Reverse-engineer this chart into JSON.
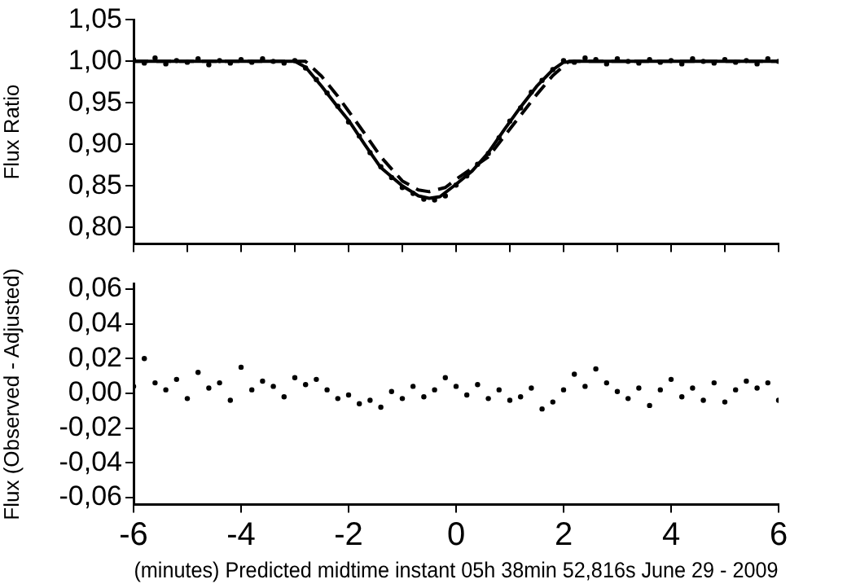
{
  "chart_data": [
    {
      "type": "scatter",
      "ylabel": "Flux Ratio",
      "xlim": [
        -6,
        6
      ],
      "xticks": [
        -6,
        -5,
        -4,
        -3,
        -2,
        -1,
        0,
        1,
        2,
        3,
        4,
        5,
        6
      ],
      "ylim": [
        0.78,
        1.05
      ],
      "yticks": [
        {
          "value": 0.8,
          "label": "0,80"
        },
        {
          "value": 0.85,
          "label": "0,85"
        },
        {
          "value": 0.9,
          "label": "0,90"
        },
        {
          "value": 0.95,
          "label": "0,95"
        },
        {
          "value": 1.0,
          "label": "1,00"
        },
        {
          "value": 1.05,
          "label": "1,05"
        }
      ],
      "tick_labels": "y",
      "grid": false,
      "legend": false,
      "series": [
        {
          "marker": "circle",
          "color": "#000000",
          "x": [
            -6,
            -5.8,
            -5.6,
            -5.4,
            -5.2,
            -5,
            -4.8,
            -4.6,
            -4.4,
            -4.2,
            -4,
            -3.8,
            -3.6,
            -3.4,
            -3.2,
            -3,
            -2.8,
            -2.6,
            -2.4,
            -2.2,
            -2,
            -1.8,
            -1.6,
            -1.4,
            -1.2,
            -1,
            -0.8,
            -0.6,
            -0.4,
            -0.2,
            0,
            0.2,
            0.4,
            0.6,
            0.8,
            1,
            1.2,
            1.4,
            1.6,
            1.8,
            2,
            2.2,
            2.4,
            2.6,
            2.8,
            3,
            3.2,
            3.4,
            3.6,
            3.8,
            4,
            4.2,
            4.4,
            4.6,
            4.8,
            5,
            5.2,
            5.4,
            5.6,
            5.8,
            6
          ],
          "values": [
            1.002,
            0.998,
            1.004,
            0.997,
            1.001,
            0.999,
            1.003,
            0.996,
            1.001,
            0.998,
            1.002,
            0.999,
            1.003,
            1.0,
            0.998,
            1.001,
            0.992,
            0.978,
            0.962,
            0.946,
            0.927,
            0.91,
            0.89,
            0.873,
            0.86,
            0.848,
            0.841,
            0.834,
            0.833,
            0.838,
            0.851,
            0.862,
            0.876,
            0.889,
            0.908,
            0.928,
            0.944,
            0.963,
            0.977,
            0.99,
            1.001,
            0.999,
            1.004,
            1.002,
            0.997,
            1.003,
            1.0,
            0.998,
            1.002,
            0.999,
            1.001,
            0.997,
            1.003,
            1.0,
            0.998,
            1.002,
            0.999,
            1.001,
            0.997,
            1.003,
            1.0
          ]
        },
        {
          "type": "line",
          "marker": "none",
          "line_style": "solid",
          "color": "#000000",
          "x": [
            -6,
            -3,
            -2.8,
            -2.5,
            -2.2,
            -2,
            -1.7,
            -1.4,
            -1,
            -0.7,
            -0.5,
            -0.3,
            0,
            0.3,
            0.6,
            0.9,
            1.2,
            1.5,
            1.8,
            2,
            2.2,
            6
          ],
          "values": [
            1.0,
            1.0,
            0.993,
            0.97,
            0.945,
            0.929,
            0.9,
            0.872,
            0.85,
            0.838,
            0.835,
            0.837,
            0.852,
            0.868,
            0.89,
            0.918,
            0.945,
            0.97,
            0.99,
            0.999,
            1.0,
            1.0
          ]
        },
        {
          "type": "line",
          "marker": "none",
          "line_style": "dashed",
          "color": "#000000",
          "x": [
            -6,
            -2.8,
            -2.5,
            -2.2,
            -2,
            -1.7,
            -1.4,
            -1,
            -0.7,
            -0.5,
            -0.2,
            0,
            0.6,
            1.2,
            1.5,
            1.8,
            2.1,
            6
          ],
          "values": [
            1.0,
            1.0,
            0.982,
            0.958,
            0.94,
            0.913,
            0.885,
            0.856,
            0.845,
            0.843,
            0.848,
            0.858,
            0.885,
            0.935,
            0.96,
            0.983,
            1.0,
            1.0
          ]
        }
      ]
    },
    {
      "type": "scatter",
      "ylabel": "Flux (Observed - Adjusted)",
      "xlabel": "(minutes) Predicted midtime instant 05h 38min 52,816s June 29 - 2009",
      "xlim": [
        -6,
        6
      ],
      "xticks": [
        -6,
        -4,
        -2,
        0,
        2,
        4,
        6
      ],
      "ylim": [
        -0.064,
        0.063
      ],
      "yticks": [
        {
          "value": -0.06,
          "label": "-0,06"
        },
        {
          "value": -0.04,
          "label": "-0,04"
        },
        {
          "value": -0.02,
          "label": "-0,02"
        },
        {
          "value": 0,
          "label": "0,00"
        },
        {
          "value": 0.02,
          "label": "0,02"
        },
        {
          "value": 0.04,
          "label": "0,04"
        },
        {
          "value": 0.06,
          "label": "0,06"
        }
      ],
      "grid": false,
      "legend": false,
      "series": [
        {
          "marker": "circle",
          "color": "#000000",
          "x": [
            -6,
            -5.8,
            -5.6,
            -5.4,
            -5.2,
            -5,
            -4.8,
            -4.6,
            -4.4,
            -4.2,
            -4,
            -3.8,
            -3.6,
            -3.4,
            -3.2,
            -3,
            -2.8,
            -2.6,
            -2.4,
            -2.2,
            -2,
            -1.8,
            -1.6,
            -1.4,
            -1.2,
            -1,
            -0.8,
            -0.6,
            -0.4,
            -0.2,
            0,
            0.2,
            0.4,
            0.6,
            0.8,
            1,
            1.2,
            1.4,
            1.6,
            1.8,
            2,
            2.2,
            2.4,
            2.6,
            2.8,
            3,
            3.2,
            3.4,
            3.6,
            3.8,
            4,
            4.2,
            4.4,
            4.6,
            4.8,
            5,
            5.2,
            5.4,
            5.6,
            5.8,
            6
          ],
          "values": [
            0.004,
            0.02,
            0.006,
            0.002,
            0.008,
            -0.003,
            0.012,
            0.003,
            0.006,
            -0.004,
            0.015,
            0.002,
            0.007,
            0.004,
            -0.002,
            0.009,
            0.005,
            0.008,
            0.002,
            -0.003,
            -0.001,
            -0.006,
            -0.004,
            -0.008,
            0.001,
            -0.003,
            0.004,
            -0.002,
            0.002,
            0.009,
            0.004,
            -0.001,
            0.005,
            -0.003,
            0.002,
            -0.004,
            -0.002,
            0.003,
            -0.009,
            -0.005,
            0.002,
            0.011,
            0.004,
            0.014,
            0.006,
            0.001,
            -0.003,
            0.003,
            -0.007,
            0.002,
            0.008,
            -0.002,
            0.003,
            -0.004,
            0.006,
            -0.005,
            0.002,
            0.007,
            0.003,
            0.006,
            -0.004
          ]
        }
      ]
    }
  ]
}
